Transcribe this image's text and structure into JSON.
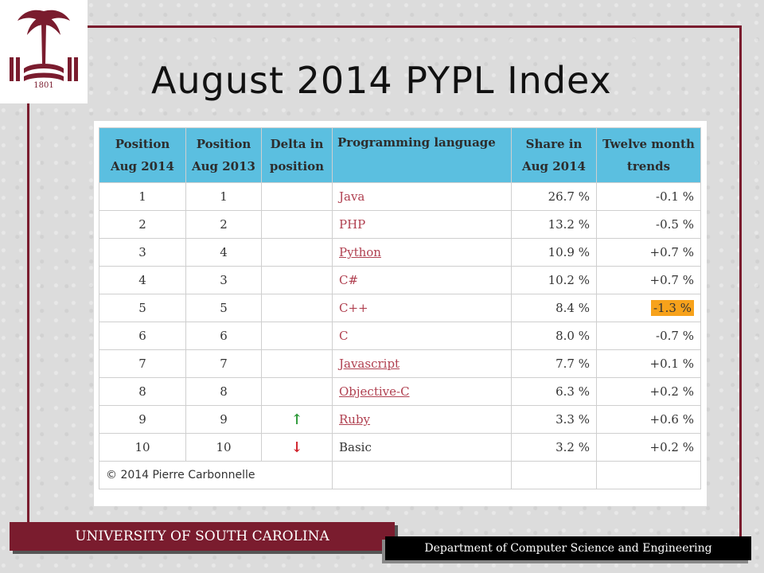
{
  "slide": {
    "title": "August 2014 PYPL Index"
  },
  "table": {
    "headers": [
      [
        "Position",
        "Aug 2014"
      ],
      [
        "Position",
        "Aug 2013"
      ],
      [
        "Delta in",
        "position"
      ],
      [
        "Programming language",
        ""
      ],
      [
        "Share in",
        "Aug 2014"
      ],
      [
        "Twelve month",
        "trends"
      ]
    ],
    "rows": [
      {
        "pos2014": "1",
        "pos2013": "1",
        "delta": "",
        "lang": "Java",
        "linked": true,
        "share": "26.7 %",
        "trend": "-0.1 %"
      },
      {
        "pos2014": "2",
        "pos2013": "2",
        "delta": "",
        "lang": "PHP",
        "linked": true,
        "share": "13.2 %",
        "trend": "-0.5 %"
      },
      {
        "pos2014": "3",
        "pos2013": "4",
        "delta": "",
        "lang": "Python",
        "linked": true,
        "share": "10.9 %",
        "trend": "+0.7 %"
      },
      {
        "pos2014": "4",
        "pos2013": "3",
        "delta": "",
        "lang": "C#",
        "linked": true,
        "share": "10.2 %",
        "trend": "+0.7 %"
      },
      {
        "pos2014": "5",
        "pos2013": "5",
        "delta": "",
        "lang": "C++",
        "linked": true,
        "share": "8.4 %",
        "trend": "-1.3 %",
        "highlight": true
      },
      {
        "pos2014": "6",
        "pos2013": "6",
        "delta": "",
        "lang": "C",
        "linked": true,
        "share": "8.0 %",
        "trend": "-0.7 %"
      },
      {
        "pos2014": "7",
        "pos2013": "7",
        "delta": "",
        "lang": "Javascript",
        "linked": true,
        "share": "7.7 %",
        "trend": "+0.1 %"
      },
      {
        "pos2014": "8",
        "pos2013": "8",
        "delta": "",
        "lang": "Objective-C",
        "linked": true,
        "share": "6.3 %",
        "trend": "+0.2 %"
      },
      {
        "pos2014": "9",
        "pos2013": "9",
        "delta": "↑",
        "lang": "Ruby",
        "linked": true,
        "share": "3.3 %",
        "trend": "+0.6 %"
      },
      {
        "pos2014": "10",
        "pos2013": "10",
        "delta": "↓",
        "lang": "Basic",
        "linked": false,
        "share": "3.2 %",
        "trend": "+0.2 %"
      }
    ],
    "footer": "© 2014 Pierre Carbonnelle",
    "highlight_color": "#f7a21b",
    "header_color": "#5bbfe0"
  },
  "footer_bars": {
    "university": "UNIVERSITY OF SOUTH CAROLINA",
    "department": "Department of Computer Science and Engineering"
  },
  "logo": {
    "icon": "usc-palmetto-logo-icon",
    "year": "1801"
  },
  "colors": {
    "brand": "#7a1c2e",
    "up": "#2e9a3a",
    "down": "#d0202a"
  }
}
